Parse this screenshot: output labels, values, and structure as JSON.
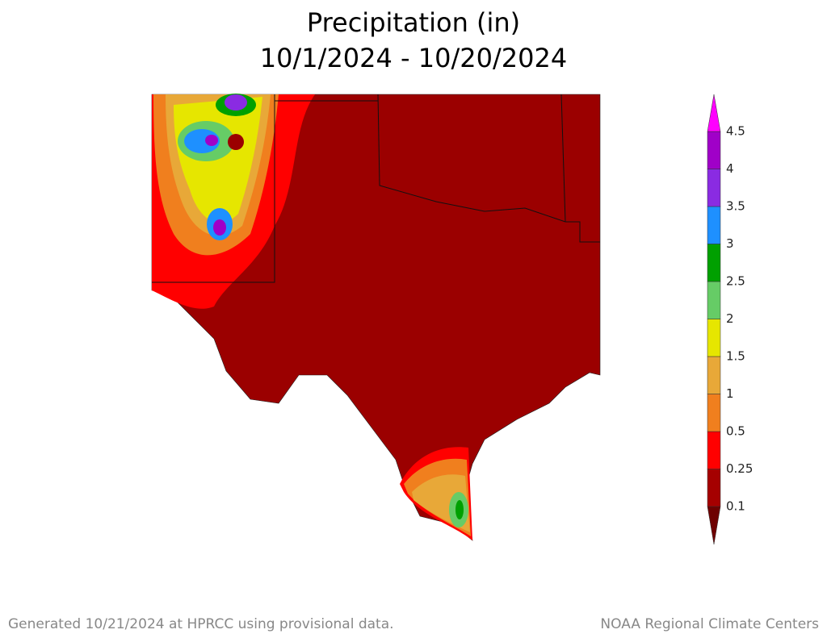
{
  "header": {
    "title": "Precipitation (in)",
    "subtitle": "10/1/2024 - 10/20/2024"
  },
  "legend": {
    "labels": [
      0.1,
      0.25,
      0.5,
      1,
      1.5,
      2,
      2.5,
      3,
      3.5,
      4,
      4.5
    ],
    "colors": [
      "#6e0000",
      "#a50000",
      "#ff0000",
      "#f07f1e",
      "#e8a838",
      "#e6e600",
      "#66cc66",
      "#00a000",
      "#1e90ff",
      "#8a2be2",
      "#a000c8",
      "#ff00ff"
    ]
  },
  "footer": {
    "left": "Generated 10/21/2024 at HPRCC using provisional data.",
    "right": "NOAA Regional Climate Centers"
  }
}
